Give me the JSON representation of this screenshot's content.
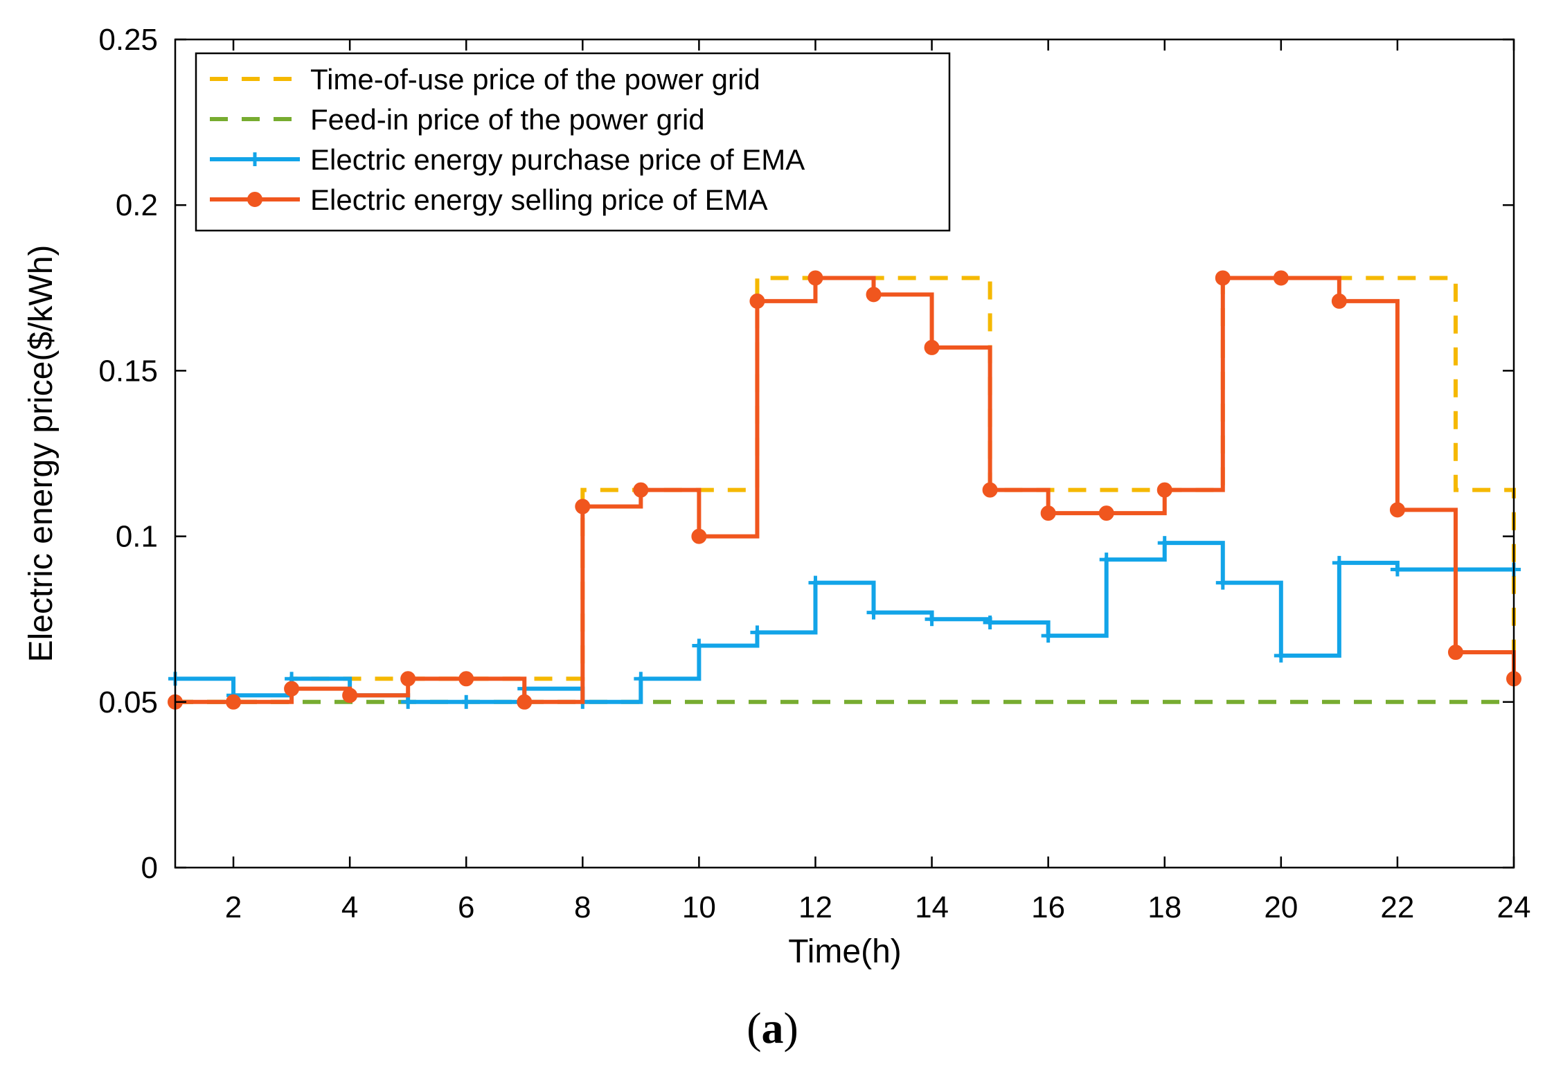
{
  "chart_data": {
    "type": "line",
    "style": "step",
    "xlabel": "Time(h)",
    "ylabel": "Electric energy price($/kWh)",
    "xlim": [
      1,
      24
    ],
    "ylim": [
      0,
      0.25
    ],
    "xticks": [
      2,
      4,
      6,
      8,
      10,
      12,
      14,
      16,
      18,
      20,
      22,
      24
    ],
    "yticks": [
      0,
      0.05,
      0.1,
      0.15,
      0.2,
      0.25
    ],
    "ytick_labels": [
      "0",
      "0.05",
      "0.1",
      "0.15",
      "0.2",
      "0.25"
    ],
    "grid": false,
    "legend_position": "top-left",
    "x": [
      1,
      2,
      3,
      4,
      5,
      6,
      7,
      8,
      9,
      10,
      11,
      12,
      13,
      14,
      15,
      16,
      17,
      18,
      19,
      20,
      21,
      22,
      23,
      24
    ],
    "series": [
      {
        "name": "Time-of-use price of the power grid",
        "color": "#F5B800",
        "line": "dashed",
        "marker": "none",
        "values": [
          0.05,
          0.05,
          0.057,
          0.057,
          0.057,
          0.057,
          0.057,
          0.114,
          0.114,
          0.114,
          0.178,
          0.178,
          0.178,
          0.178,
          0.114,
          0.114,
          0.114,
          0.114,
          0.178,
          0.178,
          0.178,
          0.178,
          0.114,
          0.057
        ]
      },
      {
        "name": "Feed-in price of the power grid",
        "color": "#77AC30",
        "line": "dashed",
        "marker": "none",
        "values": [
          0.05,
          0.05,
          0.05,
          0.05,
          0.05,
          0.05,
          0.05,
          0.05,
          0.05,
          0.05,
          0.05,
          0.05,
          0.05,
          0.05,
          0.05,
          0.05,
          0.05,
          0.05,
          0.05,
          0.05,
          0.05,
          0.05,
          0.05,
          0.05
        ]
      },
      {
        "name": "Electric energy purchase price of EMA",
        "color": "#12A4E8",
        "line": "solid",
        "marker": "plus",
        "values": [
          0.057,
          0.052,
          0.057,
          0.052,
          0.05,
          0.05,
          0.054,
          0.05,
          0.057,
          0.067,
          0.071,
          0.086,
          0.077,
          0.075,
          0.074,
          0.07,
          0.093,
          0.098,
          0.086,
          0.064,
          0.092,
          0.09,
          0.09,
          0.09
        ]
      },
      {
        "name": "Electric energy selling price of EMA",
        "color": "#F0561E",
        "line": "solid",
        "marker": "circle",
        "values": [
          0.05,
          0.05,
          0.054,
          0.052,
          0.057,
          0.057,
          0.05,
          0.109,
          0.114,
          0.1,
          0.171,
          0.178,
          0.173,
          0.157,
          0.114,
          0.107,
          0.107,
          0.114,
          0.178,
          0.178,
          0.171,
          0.108,
          0.065,
          0.057
        ]
      }
    ]
  },
  "caption": {
    "text": "a",
    "open": "(",
    "close": ")"
  }
}
